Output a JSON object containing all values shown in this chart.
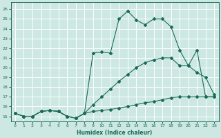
{
  "xlabel": "Humidex (Indice chaleur)",
  "background_color": "#cde8e2",
  "grid_color": "#ffffff",
  "line_color": "#1a6b5a",
  "xlim": [
    -0.5,
    23.5
  ],
  "ylim": [
    14.5,
    26.7
  ],
  "xticks": [
    0,
    1,
    2,
    3,
    4,
    5,
    6,
    7,
    8,
    9,
    10,
    11,
    12,
    13,
    14,
    15,
    16,
    17,
    18,
    19,
    20,
    21,
    22,
    23
  ],
  "yticks": [
    15,
    16,
    17,
    18,
    19,
    20,
    21,
    22,
    23,
    24,
    25,
    26
  ],
  "line1_x": [
    0,
    1,
    2,
    3,
    4,
    5,
    6,
    7,
    8,
    9,
    10,
    11,
    12,
    13,
    14,
    15,
    16,
    17,
    18,
    19,
    20,
    21,
    22,
    23
  ],
  "line1_y": [
    15.3,
    15.0,
    15.0,
    15.5,
    15.6,
    15.5,
    15.0,
    14.8,
    15.3,
    21.5,
    21.6,
    21.5,
    25.0,
    25.8,
    24.9,
    24.4,
    25.0,
    25.0,
    24.2,
    21.8,
    20.2,
    21.8,
    17.0,
    17.0
  ],
  "line2_x": [
    0,
    1,
    2,
    3,
    4,
    5,
    6,
    7,
    8,
    9,
    10,
    11,
    12,
    13,
    14,
    15,
    16,
    17,
    18,
    19,
    20,
    21,
    22,
    23
  ],
  "line2_y": [
    15.3,
    15.0,
    15.0,
    15.5,
    15.6,
    15.5,
    15.0,
    14.8,
    15.3,
    15.5,
    15.6,
    15.7,
    15.85,
    16.0,
    16.2,
    16.4,
    16.5,
    16.7,
    16.9,
    17.0,
    17.0,
    17.0,
    17.0,
    17.0
  ],
  "line3_x": [
    0,
    1,
    2,
    3,
    4,
    5,
    6,
    7,
    8,
    9,
    10,
    11,
    12,
    13,
    14,
    15,
    16,
    17,
    18,
    19,
    20,
    21,
    22,
    23
  ],
  "line3_y": [
    15.3,
    15.0,
    15.0,
    15.5,
    15.6,
    15.5,
    15.0,
    14.8,
    15.3,
    16.2,
    17.0,
    17.8,
    18.6,
    19.3,
    20.0,
    20.5,
    20.8,
    21.0,
    21.0,
    20.2,
    20.2,
    19.5,
    19.0,
    17.2
  ]
}
